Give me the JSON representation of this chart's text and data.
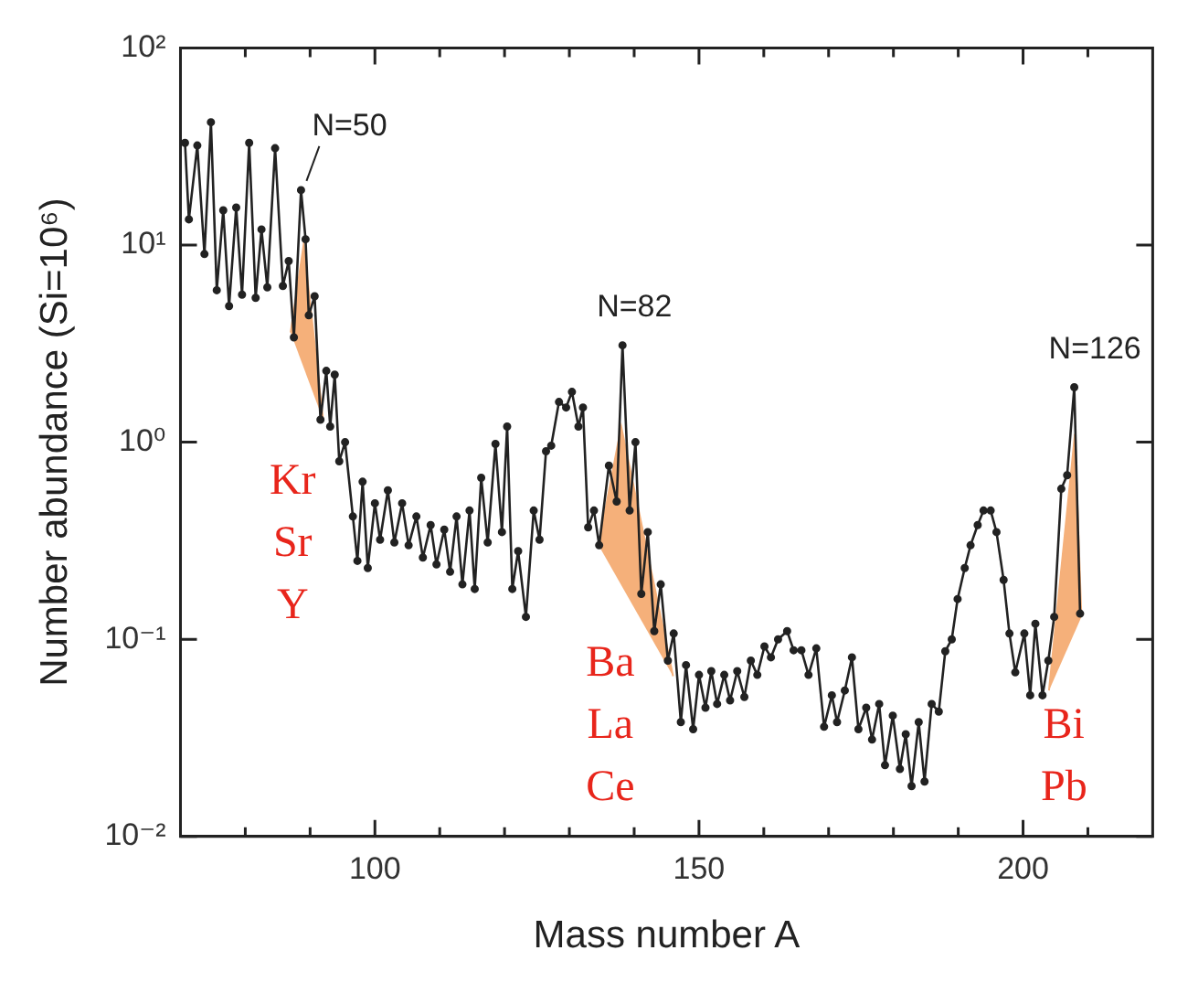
{
  "chart_data": {
    "type": "line",
    "xlabel": "Mass number A",
    "ylabel": "Number abundance (Si=10⁶)",
    "log": "y",
    "grid": false,
    "legend": false,
    "line_style": "solid",
    "xlim": [
      70,
      220
    ],
    "ylim": [
      0.01,
      100
    ],
    "xticks": [
      {
        "value": 80,
        "label": null
      },
      {
        "value": 90,
        "label": null
      },
      100,
      {
        "value": 110,
        "label": null
      },
      {
        "value": 120,
        "label": null
      },
      {
        "value": 130,
        "label": null
      },
      {
        "value": 140,
        "label": null
      },
      150,
      {
        "value": 160,
        "label": null
      },
      {
        "value": 170,
        "label": null
      },
      {
        "value": 180,
        "label": null
      },
      {
        "value": 190,
        "label": null
      },
      200,
      {
        "value": 210,
        "label": null
      }
    ],
    "yticks": [
      {
        "value": 0.01,
        "label": "10⁻²"
      },
      {
        "value": 0.1,
        "label": "10⁻¹"
      },
      {
        "value": 1,
        "label": "10⁰"
      },
      {
        "value": 10,
        "label": "10¹"
      },
      {
        "value": 100,
        "label": "10²"
      }
    ],
    "series": [
      {
        "color": "#222222",
        "marker": "circle",
        "x": [
          70.7,
          71.3,
          72.6,
          73.7,
          74.7,
          75.6,
          76.6,
          77.5,
          78.6,
          79.5,
          80.6,
          81.6,
          82.5,
          83.4,
          84.6,
          85.8,
          86.7,
          87.5,
          88.6,
          89.3,
          89.8,
          90.7,
          91.6,
          92.5,
          93.1,
          93.8,
          94.5,
          95.4,
          96.6,
          97.3,
          98.1,
          98.9,
          100,
          100.8,
          102,
          103,
          104.2,
          105.2,
          106.4,
          107.4,
          108.6,
          109.5,
          110.7,
          111.6,
          112.6,
          113.5,
          114.6,
          115.4,
          116.4,
          117.4,
          118.6,
          119.6,
          120.4,
          121.2,
          122.1,
          123.3,
          124.5,
          125.4,
          126.4,
          127.2,
          128.4,
          129.5,
          130.4,
          131.4,
          132.1,
          132.9,
          133.8,
          134.6,
          136.1,
          137.3,
          138.2,
          139.3,
          140.2,
          141.1,
          142.1,
          143.1,
          144.1,
          145.2,
          146.1,
          147.2,
          148,
          149.1,
          150,
          151,
          151.9,
          152.8,
          153.9,
          154.8,
          155.9,
          157,
          158,
          159,
          160.1,
          161.1,
          162.2,
          163.6,
          164.6,
          165.8,
          166.9,
          168.1,
          169.3,
          170.5,
          171.3,
          172.5,
          173.6,
          174.6,
          175.8,
          176.7,
          177.8,
          178.7,
          179.9,
          181,
          181.9,
          182.8,
          183.9,
          184.8,
          185.9,
          187,
          188,
          189,
          189.9,
          191,
          191.9,
          193,
          193.9,
          195,
          195.9,
          197,
          197.9,
          198.8,
          200.2,
          201.1,
          201.9,
          203,
          203.9,
          204.8,
          205.9,
          206.8,
          207.9,
          208.8
        ],
        "values": [
          33,
          13.5,
          32,
          9,
          42,
          5.9,
          15,
          4.9,
          15.5,
          5.6,
          33,
          5.4,
          12,
          6.1,
          31,
          6.2,
          8.3,
          3.4,
          19,
          10.7,
          4.4,
          5.5,
          1.3,
          2.3,
          1.2,
          2.2,
          0.8,
          1.0,
          0.42,
          0.25,
          0.63,
          0.23,
          0.49,
          0.32,
          0.57,
          0.31,
          0.49,
          0.3,
          0.42,
          0.26,
          0.38,
          0.24,
          0.36,
          0.22,
          0.42,
          0.19,
          0.45,
          0.18,
          0.66,
          0.31,
          0.98,
          0.35,
          1.2,
          0.18,
          0.28,
          0.13,
          0.45,
          0.32,
          0.9,
          0.96,
          1.6,
          1.5,
          1.8,
          1.2,
          1.5,
          0.37,
          0.45,
          0.3,
          0.76,
          0.5,
          3.1,
          0.45,
          1.0,
          0.17,
          0.35,
          0.11,
          0.19,
          0.078,
          0.107,
          0.038,
          0.074,
          0.035,
          0.066,
          0.045,
          0.069,
          0.047,
          0.066,
          0.049,
          0.069,
          0.051,
          0.078,
          0.066,
          0.092,
          0.081,
          0.1,
          0.11,
          0.088,
          0.088,
          0.066,
          0.09,
          0.036,
          0.052,
          0.038,
          0.055,
          0.081,
          0.035,
          0.045,
          0.031,
          0.047,
          0.023,
          0.041,
          0.022,
          0.033,
          0.018,
          0.038,
          0.019,
          0.047,
          0.043,
          0.087,
          0.1,
          0.16,
          0.23,
          0.3,
          0.38,
          0.45,
          0.45,
          0.35,
          0.2,
          0.107,
          0.068,
          0.107,
          0.052,
          0.12,
          0.052,
          0.078,
          0.13,
          0.58,
          0.68,
          1.9,
          0.135
        ]
      },
      {
        "type": "area",
        "name": "Kr Sr Y",
        "color": "#f5b07a",
        "x": [
          87,
          89,
          92
        ],
        "values": [
          3.6,
          10,
          1.3
        ]
      },
      {
        "type": "area",
        "name": "Ba La Ce",
        "color": "#f5b07a",
        "x": [
          134.5,
          138,
          146
        ],
        "values": [
          0.3,
          1.2,
          0.065
        ]
      },
      {
        "type": "area",
        "name": "Bi Pb",
        "color": "#f5b07a",
        "x": [
          204,
          208,
          209
        ],
        "values": [
          0.055,
          1.1,
          0.13
        ]
      }
    ],
    "annotations": [
      {
        "text": "N=50",
        "x": 88.6,
        "y": 19
      },
      {
        "text": "N=82",
        "x": 138.2,
        "y": 3.1
      },
      {
        "text": "N=126",
        "x": 207.9,
        "y": 1.9
      }
    ]
  }
}
